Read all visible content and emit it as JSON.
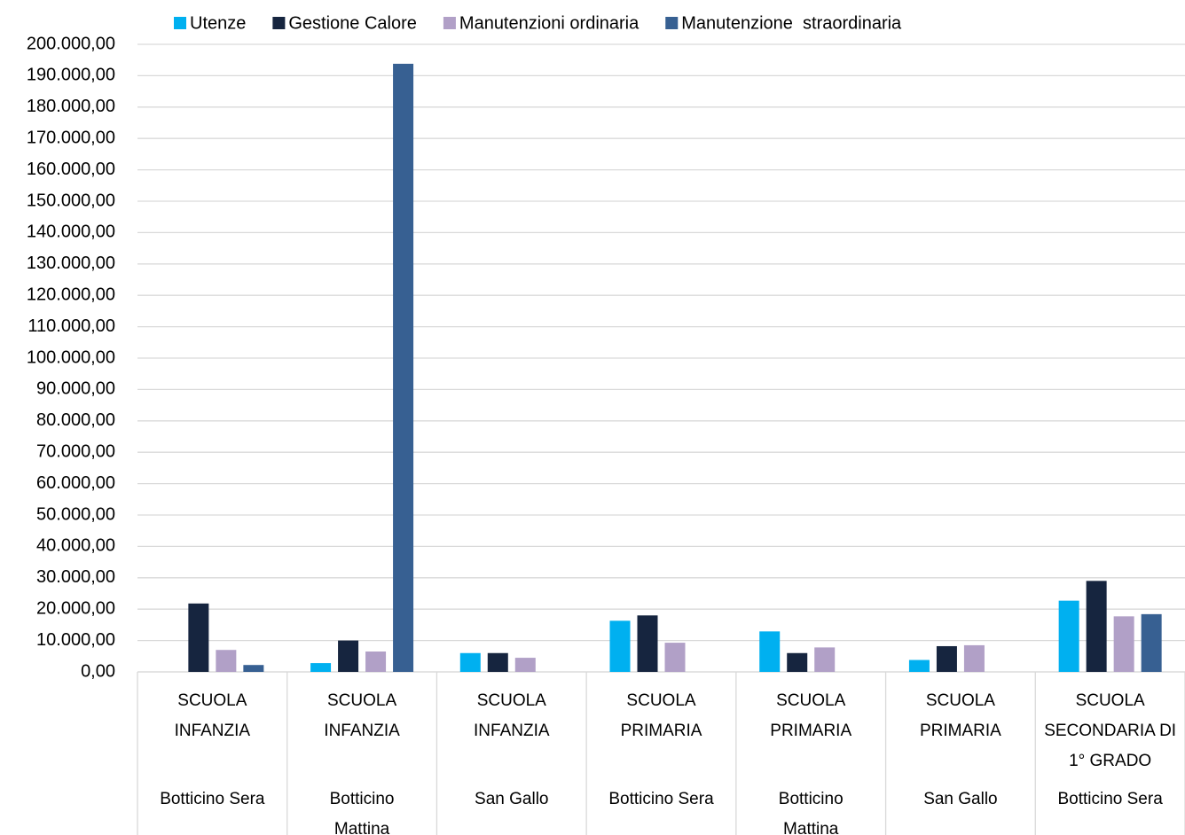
{
  "chart_data": {
    "type": "bar",
    "categories": [
      {
        "group": "SCUOLA INFANZIA",
        "location": "Botticino Sera"
      },
      {
        "group": "SCUOLA INFANZIA",
        "location": "Botticino Mattina"
      },
      {
        "group": "SCUOLA INFANZIA",
        "location": "San Gallo"
      },
      {
        "group": "SCUOLA PRIMARIA",
        "location": "Botticino Sera"
      },
      {
        "group": "SCUOLA PRIMARIA",
        "location": "Botticino Mattina"
      },
      {
        "group": "SCUOLA PRIMARIA",
        "location": "San Gallo"
      },
      {
        "group": "SCUOLA SECONDARIA DI 1° GRADO",
        "location": "Botticino Sera"
      }
    ],
    "series": [
      {
        "name": "Utenze",
        "color": "#00b0f0",
        "values": [
          0,
          2800,
          6000,
          16300,
          12900,
          3800,
          22700
        ]
      },
      {
        "name": "Gestione Calore",
        "color": "#16253f",
        "values": [
          21800,
          10000,
          6000,
          18000,
          6000,
          8200,
          29000
        ]
      },
      {
        "name": "Manutenzioni ordinaria",
        "color": "#b1a0c7",
        "values": [
          7000,
          6500,
          4500,
          9300,
          7800,
          8500,
          17700
        ]
      },
      {
        "name": "Manutenzione  straordinaria",
        "color": "#376092",
        "values": [
          2200,
          193800,
          0,
          0,
          0,
          0,
          18400
        ]
      }
    ],
    "ylim": [
      0,
      200000
    ],
    "yticks": [
      {
        "value": 0,
        "label": "0,00"
      },
      {
        "value": 10000,
        "label": "10.000,00"
      },
      {
        "value": 20000,
        "label": "20.000,00"
      },
      {
        "value": 30000,
        "label": "30.000,00"
      },
      {
        "value": 40000,
        "label": "40.000,00"
      },
      {
        "value": 50000,
        "label": "50.000,00"
      },
      {
        "value": 60000,
        "label": "60.000,00"
      },
      {
        "value": 70000,
        "label": "70.000,00"
      },
      {
        "value": 80000,
        "label": "80.000,00"
      },
      {
        "value": 90000,
        "label": "90.000,00"
      },
      {
        "value": 100000,
        "label": "100.000,00"
      },
      {
        "value": 110000,
        "label": "110.000,00"
      },
      {
        "value": 120000,
        "label": "120.000,00"
      },
      {
        "value": 130000,
        "label": "130.000,00"
      },
      {
        "value": 140000,
        "label": "140.000,00"
      },
      {
        "value": 150000,
        "label": "150.000,00"
      },
      {
        "value": 160000,
        "label": "160.000,00"
      },
      {
        "value": 170000,
        "label": "170.000,00"
      },
      {
        "value": 180000,
        "label": "180.000,00"
      },
      {
        "value": 190000,
        "label": "190.000,00"
      },
      {
        "value": 200000,
        "label": "200.000,00"
      }
    ],
    "grid": true,
    "legend": "top"
  }
}
